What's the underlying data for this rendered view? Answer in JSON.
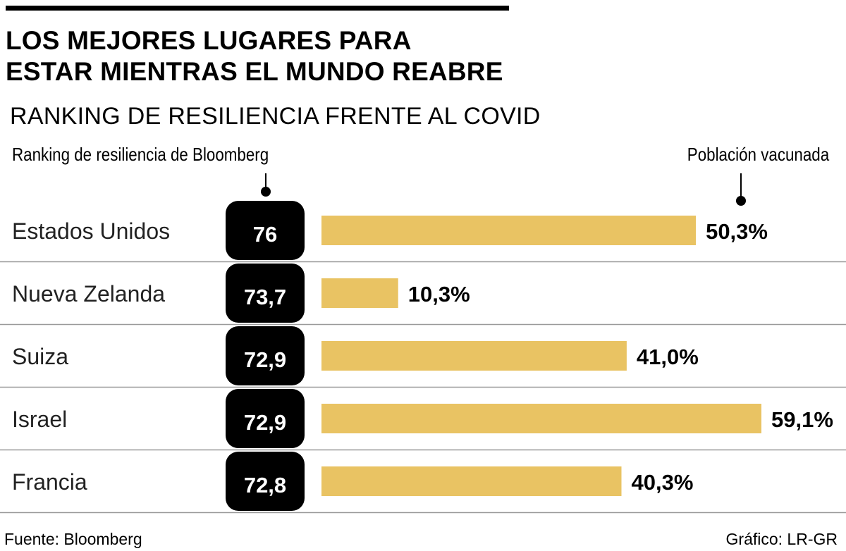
{
  "header": {
    "title_line1": "LOS MEJORES LUGARES PARA",
    "title_line2": "ESTAR MIENTRAS EL MUNDO REABRE",
    "subtitle": "RANKING DE RESILIENCIA FRENTE AL COVID"
  },
  "legend": {
    "left": "Ranking de resiliencia de Bloomberg",
    "right": "Población vacunada"
  },
  "footer": {
    "source": "Fuente: Bloomberg",
    "credit": "Gráfico: LR-GR"
  },
  "colors": {
    "bar": "#E9C363",
    "badge": "#000000",
    "divider": "#9a9a9a"
  },
  "chart_data": {
    "type": "bar",
    "title": "LOS MEJORES LUGARES PARA ESTAR MIENTRAS EL MUNDO REABRE",
    "subtitle": "RANKING DE RESILIENCIA FRENTE AL COVID",
    "categories": [
      "Estados Unidos",
      "Nueva Zelanda",
      "Suiza",
      "Israel",
      "Francia"
    ],
    "rank_labels": [
      "76",
      "73,7",
      "72,9",
      "72,9",
      "72,8"
    ],
    "value_labels": [
      "50,3%",
      "10,3%",
      "41,0%",
      "59,1%",
      "40,3%"
    ],
    "series": [
      {
        "name": "Ranking de resiliencia de Bloomberg",
        "values": [
          76,
          73.7,
          72.9,
          72.9,
          72.8
        ]
      },
      {
        "name": "Población vacunada",
        "values": [
          50.3,
          10.3,
          41.0,
          59.1,
          40.3
        ]
      }
    ],
    "xlim": [
      0,
      59.1
    ],
    "orientation": "horizontal"
  }
}
